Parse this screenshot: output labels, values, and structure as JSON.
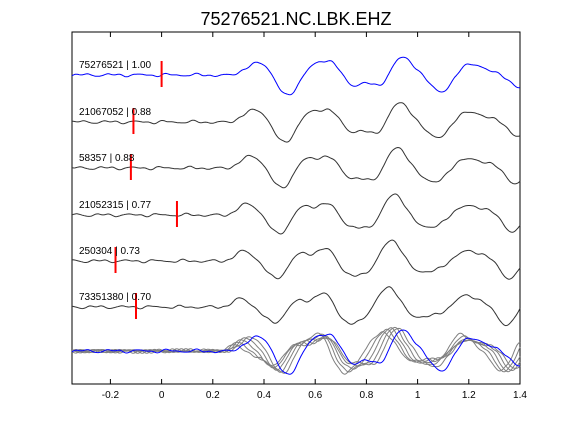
{
  "chart_data": {
    "type": "line",
    "title": "75276521.NC.LBK.EHZ",
    "xlabel": "",
    "ylabel": "",
    "xlim": [
      -0.35,
      1.4
    ],
    "x_ticks": [
      "-0.2",
      "0",
      "0.2",
      "0.4",
      "0.6",
      "0.8",
      "1",
      "1.2",
      "1.4"
    ],
    "grid": false,
    "traces": [
      {
        "label": "75276521 | 1.00",
        "pick_time": 0.0,
        "color": "#0000ff",
        "offset": 0.0
      },
      {
        "label": "21067052 | 0.88",
        "pick_time": -0.11,
        "color": "#333333",
        "offset": 0.11
      },
      {
        "label": "58357 | 0.88",
        "pick_time": -0.12,
        "color": "#333333",
        "offset": 0.12
      },
      {
        "label": "21052315 | 0.77",
        "pick_time": 0.06,
        "color": "#333333",
        "offset": -0.06
      },
      {
        "label": "250304 | 0.73",
        "pick_time": -0.18,
        "color": "#333333",
        "offset": 0.18
      },
      {
        "label": "73351380 | 0.70",
        "pick_time": -0.1,
        "color": "#333333",
        "offset": 0.1
      }
    ],
    "stack": {
      "colors": [
        "#0000ff",
        "#808080"
      ]
    },
    "pick_color": "#ff0000"
  }
}
